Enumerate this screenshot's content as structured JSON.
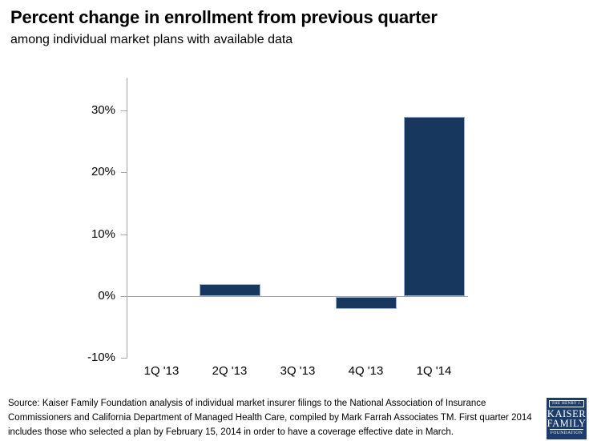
{
  "header": {
    "title": "Percent change in enrollment from previous quarter",
    "subtitle": "among individual market plans with available data"
  },
  "chart_data": {
    "type": "bar",
    "title": "Percent change in enrollment from previous quarter",
    "subtitle": "among individual market plans with available data",
    "categories": [
      "1Q '13",
      "2Q '13",
      "3Q '13",
      "4Q '13",
      "1Q '14"
    ],
    "values": [
      0,
      2,
      0,
      -2,
      29
    ],
    "unit": "%",
    "xlabel": "",
    "ylabel": "",
    "ylim": [
      -10,
      35
    ],
    "yticks": [
      {
        "value": 30,
        "label": "30%"
      },
      {
        "value": 20,
        "label": "20%"
      },
      {
        "value": 10,
        "label": "10%"
      },
      {
        "value": 0,
        "label": "0%"
      },
      {
        "value": -10,
        "label": "-10%"
      }
    ],
    "grid": "zero-line-only",
    "legend": "none"
  },
  "colors": {
    "bar_fill": "#17375E",
    "bar_border": "#95B3D7",
    "axis": "#A6A6A6",
    "text": "#000000",
    "logo_bg": "#1C3C6E"
  },
  "footer": {
    "source_lines": [
      "Source: Kaiser Family Foundation analysis of individual market insurer filings to the National Association of Insurance",
      "Commissioners and California Department of Managed Health Care, compiled by Mark Farrah Associates TM.  First quarter 2014",
      "includes those who selected a plan by February 15, 2014 in order to have a coverage effective date in March."
    ],
    "logo": {
      "line1": "THE HENRY J.",
      "line2": "KAISER",
      "line3": "FAMILY",
      "line4": "FOUNDATION"
    }
  }
}
